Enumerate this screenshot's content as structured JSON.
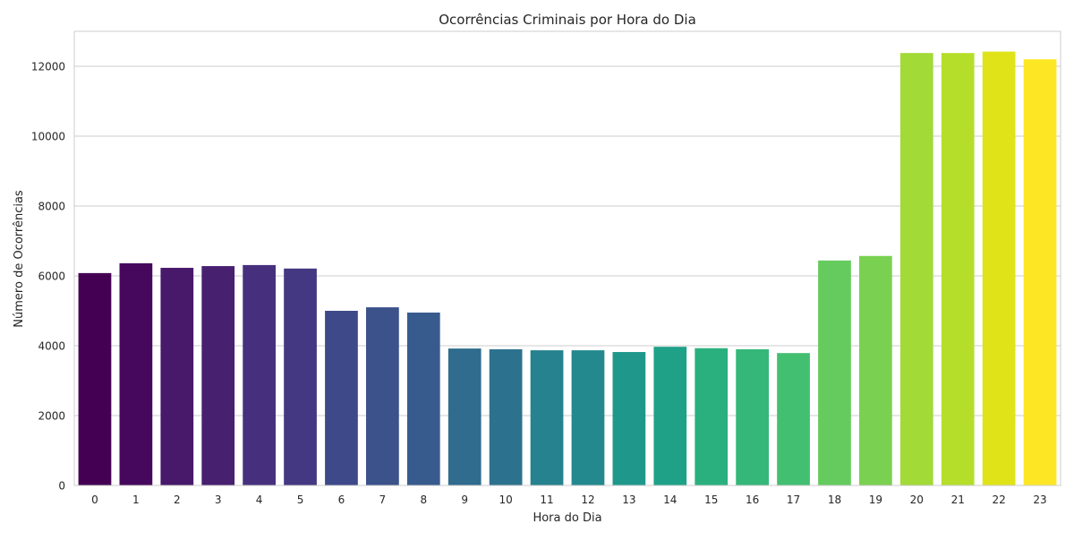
{
  "chart_data": {
    "type": "bar",
    "title": "Ocorrências Criminais por Hora do Dia",
    "xlabel": "Hora do Dia",
    "ylabel": "Número de Ocorrências",
    "categories": [
      "0",
      "1",
      "2",
      "3",
      "4",
      "5",
      "6",
      "7",
      "8",
      "9",
      "10",
      "11",
      "12",
      "13",
      "14",
      "15",
      "16",
      "17",
      "18",
      "19",
      "20",
      "21",
      "22",
      "23"
    ],
    "values": [
      6080,
      6360,
      6230,
      6280,
      6310,
      6210,
      5000,
      5100,
      4950,
      3920,
      3900,
      3870,
      3870,
      3820,
      3970,
      3930,
      3900,
      3790,
      6440,
      6570,
      12380,
      12380,
      12420,
      12200
    ],
    "yticks": [
      0,
      2000,
      4000,
      6000,
      8000,
      10000,
      12000
    ],
    "ylim": [
      0,
      13000
    ],
    "grid": "horizontal",
    "colors": [
      "#440154",
      "#46085c",
      "#471063",
      "#48186a",
      "#472070",
      "#472876",
      "#46307e",
      "#453882",
      "#424086",
      "#3e4989",
      "#3b528b",
      "#375b8d",
      "#33638d",
      "#2f6c8e",
      "#2c728e",
      "#29798e",
      "#26828e",
      "#23898e",
      "#21918c",
      "#1f988b",
      "#1fa188",
      "#22a884",
      "#2ab07f",
      "#35b779",
      "#43bf71",
      "#54c568",
      "#65cb5e",
      "#7ad151",
      "#8ed645",
      "#a2da37",
      "#b5de2b",
      "#cae11f",
      "#dfe318",
      "#fde725"
    ]
  }
}
